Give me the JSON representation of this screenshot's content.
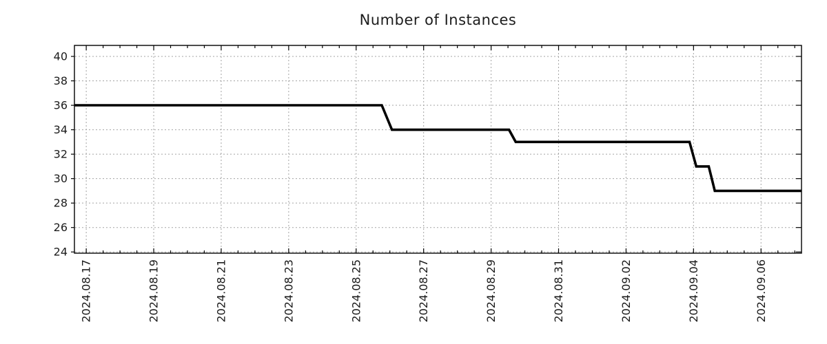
{
  "page": {
    "background_color": "#ffffff"
  },
  "chart_data": {
    "type": "line",
    "title": "Number of Instances",
    "line_shape": "step-with-short-ramps",
    "series": [
      {
        "name": "instances",
        "color": "#000000",
        "points_day_value": [
          [
            -0.35,
            36
          ],
          [
            8.76,
            36
          ],
          [
            9.06,
            34
          ],
          [
            12.53,
            34
          ],
          [
            12.73,
            33
          ],
          [
            17.88,
            33
          ],
          [
            18.08,
            31
          ],
          [
            18.45,
            31
          ],
          [
            18.63,
            29
          ],
          [
            21.2,
            29
          ]
        ]
      }
    ],
    "x_unit": "days since 2024-08-17 00:00",
    "xlim_days": [
      -0.35,
      21.2
    ],
    "x_major_ticks": [
      {
        "day": 0,
        "label": "2024.08.17"
      },
      {
        "day": 2,
        "label": "2024.08.19"
      },
      {
        "day": 4,
        "label": "2024.08.21"
      },
      {
        "day": 6,
        "label": "2024.08.23"
      },
      {
        "day": 8,
        "label": "2024.08.25"
      },
      {
        "day": 10,
        "label": "2024.08.27"
      },
      {
        "day": 12,
        "label": "2024.08.29"
      },
      {
        "day": 14,
        "label": "2024.08.31"
      },
      {
        "day": 16,
        "label": "2024.09.02"
      },
      {
        "day": 18,
        "label": "2024.09.04"
      },
      {
        "day": 20,
        "label": "2024.09.06"
      }
    ],
    "x_minor_tick_step_days": 0.5,
    "ylim": [
      23.9,
      40.9
    ],
    "y_ticks": [
      24,
      26,
      28,
      30,
      32,
      34,
      36,
      38,
      40
    ],
    "grid": true,
    "grid_style": "dashed",
    "colors": {
      "line": "#000000",
      "grid": "#a3a3a3",
      "axis": "#000000",
      "text": "#1c1c1c"
    },
    "legend": "none",
    "x_label_rotation_deg": -90
  }
}
